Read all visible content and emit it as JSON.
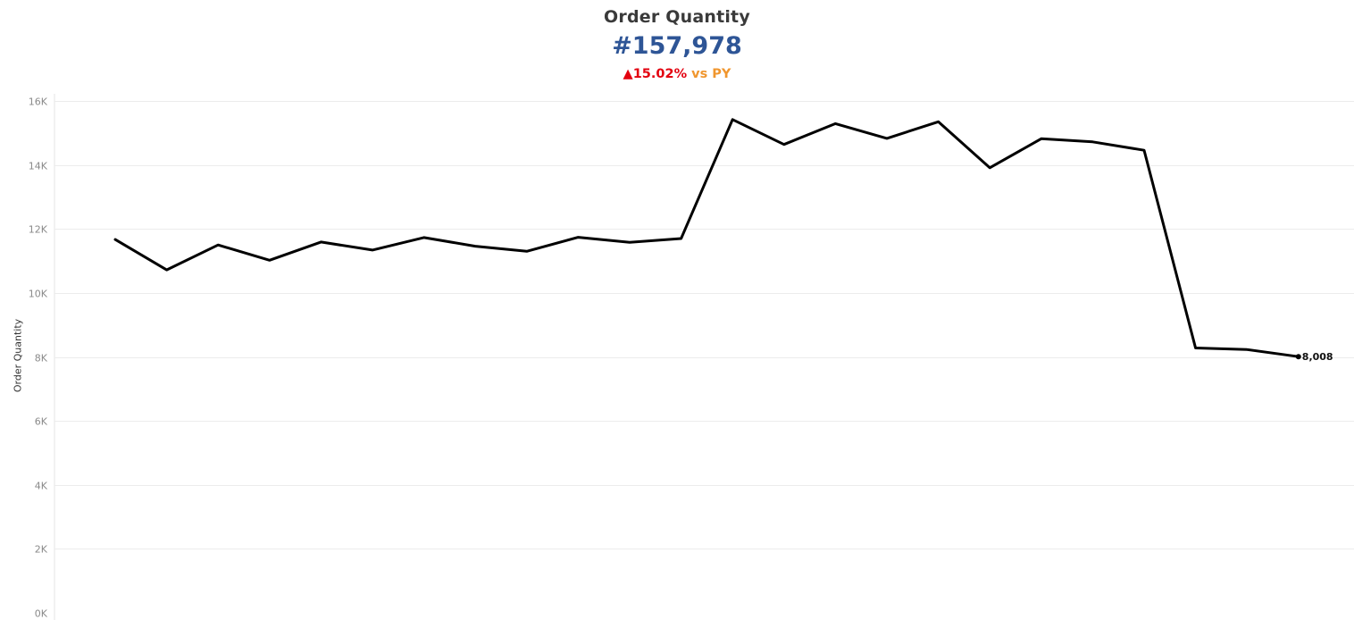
{
  "header": {
    "title": "Order Quantity",
    "kpi_value": "#157,978",
    "delta_arrow": "▲",
    "delta_pct": "15.02%",
    "delta_suffix": "vs PY"
  },
  "colors": {
    "kpi": "#2e5596",
    "negative": "#e3000f",
    "accent": "#f0962e",
    "line": "#000000",
    "grid": "#ececec"
  },
  "chart_data": {
    "type": "line",
    "title": "Order Quantity",
    "xlabel": "",
    "ylabel": "Order Quantity",
    "ylim": [
      0,
      16000
    ],
    "yticks": [
      0,
      2000,
      4000,
      6000,
      8000,
      10000,
      12000,
      14000,
      16000
    ],
    "ytick_labels": [
      "0K",
      "2K",
      "4K",
      "6K",
      "8K",
      "10K",
      "12K",
      "14K",
      "16K"
    ],
    "grid": true,
    "series": [
      {
        "values": [
          11670,
          10720,
          11500,
          11020,
          11590,
          11340,
          11730,
          11460,
          11300,
          11740,
          11580,
          11700,
          15420,
          14640,
          15290,
          14830,
          15350,
          13910,
          14820,
          14720,
          14460,
          8280,
          8230,
          8008
        ],
        "end_label": "8,008"
      }
    ]
  }
}
